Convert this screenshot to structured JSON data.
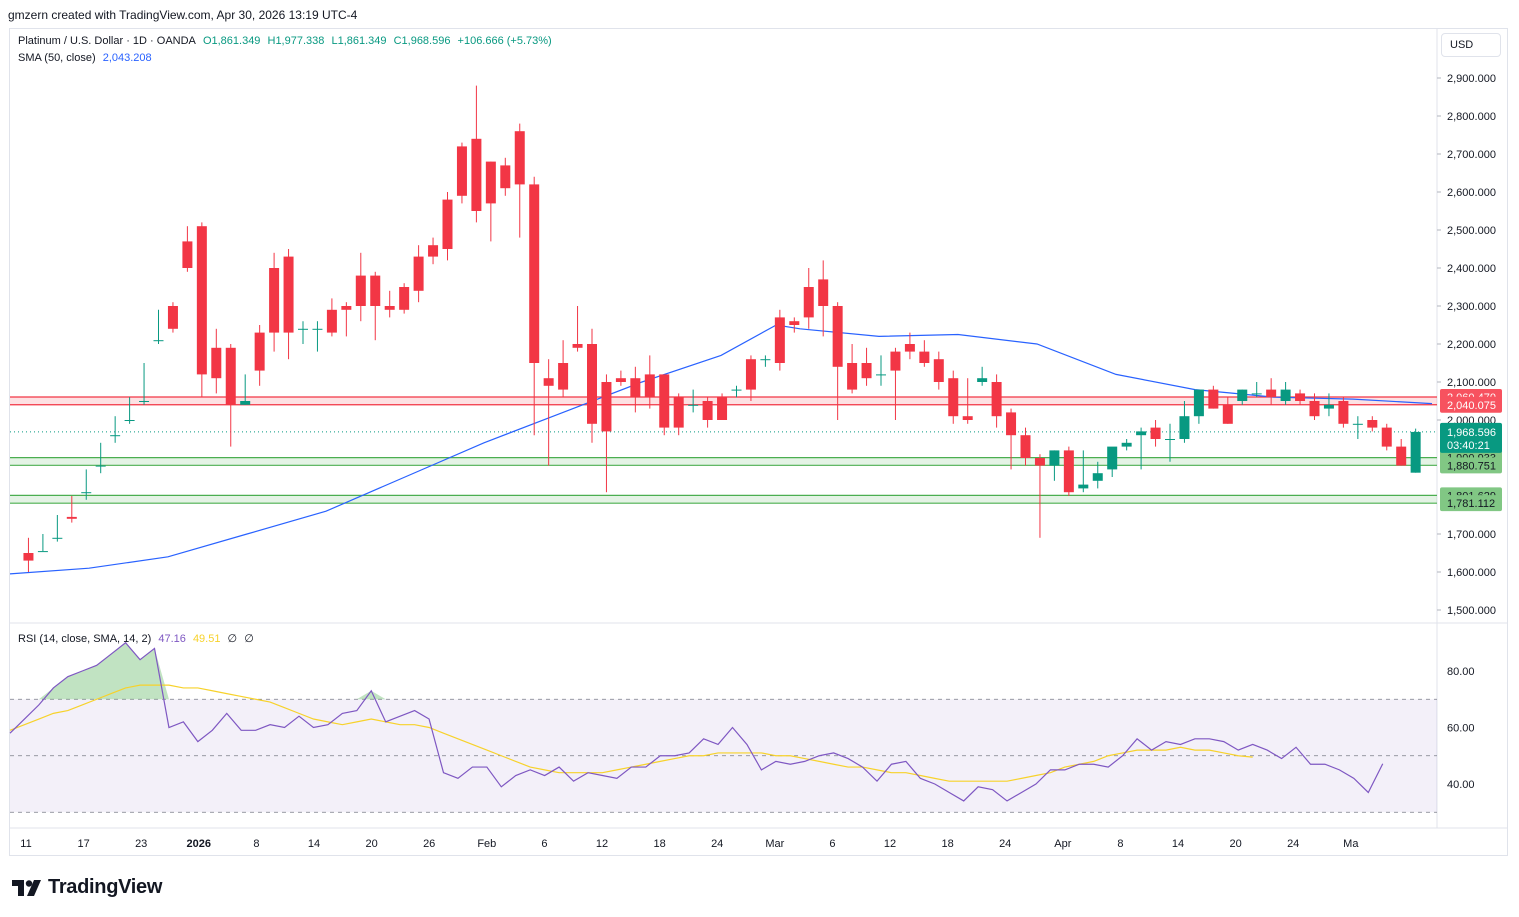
{
  "header": {
    "attribution": "gmzern created with TradingView.com, Apr 30, 2026 13:19 UTC-4"
  },
  "legend": {
    "symbol": "Platinum / U.S. Dollar · 1D · OANDA",
    "open": "O1,861.349",
    "high": "H1,977.338",
    "low": "L1,861.349",
    "close": "C1,968.596",
    "change": "+106.666 (+5.73%)",
    "sma_label": "SMA (50, close)",
    "sma_value": "2,043.208",
    "rsi_label": "RSI (14, close, SMA, 14, 2)",
    "rsi_value": "47.16",
    "rsi_ma_value": "49.51",
    "rsi_extra1": "∅",
    "rsi_extra2": "∅"
  },
  "currency": "USD",
  "footer": {
    "brand": "TradingView",
    "logo_icon": "tradingview-logo-icon"
  },
  "colors": {
    "up": "#089981",
    "down": "#f23645",
    "sma": "#2962ff",
    "rsi": "#7e57c2",
    "rsi_ma": "#f7d22b",
    "support": "#4caf50",
    "resistance": "#f23645"
  },
  "chart_data": {
    "type": "candlestick",
    "price_axis": {
      "ylim": [
        1450,
        2980
      ],
      "ticks": [
        "2,900.000",
        "2,800.000",
        "2,700.000",
        "2,600.000",
        "2,500.000",
        "2,400.000",
        "2,300.000",
        "2,200.000",
        "2,100.000",
        "2,000.000",
        "1,700.000",
        "1,600.000",
        "1,500.000"
      ]
    },
    "x_labels": [
      "11",
      "17",
      "23",
      "2026",
      "8",
      "14",
      "20",
      "26",
      "Feb",
      "6",
      "12",
      "18",
      "24",
      "Mar",
      "6",
      "12",
      "18",
      "24",
      "Apr",
      "8",
      "14",
      "20",
      "24",
      "Ma"
    ],
    "candles": [
      [
        1,
        [
          1650,
          1690,
          1630,
          1600
        ]
      ],
      [
        2,
        [
          1655,
          1700,
          1655,
          1655
        ]
      ],
      [
        3,
        [
          1690,
          1750,
          1690,
          1680
        ]
      ],
      [
        4,
        [
          1745,
          1800,
          1740,
          1730
        ]
      ],
      [
        5,
        [
          1810,
          1870,
          1810,
          1790
        ]
      ],
      [
        6,
        [
          1880,
          1940,
          1880,
          1860
        ]
      ],
      [
        7,
        [
          1960,
          2010,
          1960,
          1940
        ]
      ],
      [
        8,
        [
          2000,
          2060,
          2000,
          1990
        ]
      ],
      [
        9,
        [
          2050,
          2150,
          2050,
          2040
        ]
      ],
      [
        10,
        [
          2210,
          2290,
          2210,
          2200
        ]
      ],
      [
        11,
        [
          2300,
          2310,
          2240,
          2230
        ]
      ],
      [
        12,
        [
          2470,
          2510,
          2400,
          2390
        ]
      ],
      [
        13,
        [
          2510,
          2520,
          2120,
          2060
        ]
      ],
      [
        14,
        [
          2190,
          2240,
          2110,
          2070
        ]
      ],
      [
        15,
        [
          2190,
          2200,
          2040,
          1930
        ]
      ],
      [
        16,
        [
          2040,
          2120,
          2050,
          2040
        ]
      ],
      [
        17,
        [
          2230,
          2250,
          2130,
          2090
        ]
      ],
      [
        18,
        [
          2400,
          2440,
          2230,
          2180
        ]
      ],
      [
        19,
        [
          2430,
          2450,
          2230,
          2160
        ]
      ],
      [
        20,
        [
          2240,
          2260,
          2240,
          2200
        ]
      ],
      [
        21,
        [
          2240,
          2260,
          2240,
          2180
        ]
      ],
      [
        22,
        [
          2290,
          2320,
          2230,
          2220
        ]
      ],
      [
        23,
        [
          2300,
          2310,
          2290,
          2220
        ]
      ],
      [
        24,
        [
          2380,
          2440,
          2300,
          2260
        ]
      ],
      [
        25,
        [
          2380,
          2390,
          2300,
          2210
        ]
      ],
      [
        26,
        [
          2300,
          2340,
          2290,
          2270
        ]
      ],
      [
        27,
        [
          2350,
          2360,
          2290,
          2280
        ]
      ],
      [
        28,
        [
          2430,
          2460,
          2340,
          2310
        ]
      ],
      [
        29,
        [
          2460,
          2480,
          2430,
          2410
        ]
      ],
      [
        30,
        [
          2580,
          2600,
          2450,
          2420
        ]
      ],
      [
        31,
        [
          2720,
          2730,
          2590,
          2570
        ]
      ],
      [
        32,
        [
          2740,
          2880,
          2550,
          2520
        ]
      ],
      [
        33,
        [
          2680,
          2680,
          2570,
          2470
        ]
      ],
      [
        34,
        [
          2670,
          2690,
          2610,
          2590
        ]
      ],
      [
        35,
        [
          2760,
          2780,
          2620,
          2480
        ]
      ],
      [
        36,
        [
          2620,
          2640,
          2150,
          1960
        ]
      ],
      [
        37,
        [
          2110,
          2160,
          2090,
          1880
        ]
      ],
      [
        38,
        [
          2150,
          2210,
          2080,
          2060
        ]
      ],
      [
        39,
        [
          2200,
          2300,
          2190,
          2180
        ]
      ],
      [
        40,
        [
          2200,
          2240,
          1990,
          1940
        ]
      ],
      [
        41,
        [
          2100,
          2120,
          1970,
          1810
        ]
      ],
      [
        42,
        [
          2110,
          2130,
          2100,
          2090
        ]
      ],
      [
        43,
        [
          2110,
          2140,
          2060,
          2020
        ]
      ],
      [
        44,
        [
          2120,
          2170,
          2060,
          2030
        ]
      ],
      [
        45,
        [
          2120,
          2120,
          1980,
          1960
        ]
      ],
      [
        46,
        [
          2060,
          2070,
          1980,
          1960
        ]
      ],
      [
        47,
        [
          2040,
          2080,
          2040,
          2020
        ]
      ],
      [
        48,
        [
          2050,
          2060,
          2000,
          1980
        ]
      ],
      [
        49,
        [
          2060,
          2070,
          2000,
          2000
        ]
      ],
      [
        50,
        [
          2080,
          2090,
          2080,
          2060
        ]
      ],
      [
        51,
        [
          2160,
          2170,
          2080,
          2050
        ]
      ],
      [
        52,
        [
          2160,
          2170,
          2160,
          2140
        ]
      ],
      [
        53,
        [
          2270,
          2290,
          2150,
          2130
        ]
      ],
      [
        54,
        [
          2260,
          2270,
          2250,
          2230
        ]
      ],
      [
        55,
        [
          2350,
          2400,
          2270,
          2240
        ]
      ],
      [
        56,
        [
          2370,
          2420,
          2300,
          2220
        ]
      ],
      [
        57,
        [
          2300,
          2310,
          2140,
          2000
        ]
      ],
      [
        58,
        [
          2150,
          2200,
          2080,
          2070
        ]
      ],
      [
        59,
        [
          2150,
          2190,
          2110,
          2090
        ]
      ],
      [
        60,
        [
          2120,
          2170,
          2120,
          2090
        ]
      ],
      [
        61,
        [
          2180,
          2190,
          2130,
          2000
        ]
      ],
      [
        62,
        [
          2200,
          2230,
          2180,
          2160
        ]
      ],
      [
        63,
        [
          2180,
          2210,
          2150,
          2140
        ]
      ],
      [
        64,
        [
          2160,
          2180,
          2100,
          2080
        ]
      ],
      [
        65,
        [
          2110,
          2130,
          2010,
          1990
        ]
      ],
      [
        66,
        [
          2010,
          2110,
          2000,
          1990
        ]
      ],
      [
        67,
        [
          2100,
          2140,
          2110,
          2090
        ]
      ],
      [
        68,
        [
          2100,
          2120,
          2010,
          1980
        ]
      ],
      [
        69,
        [
          2020,
          2030,
          1960,
          1870
        ]
      ],
      [
        70,
        [
          1960,
          1980,
          1900,
          1880
        ]
      ],
      [
        71,
        [
          1900,
          1910,
          1880,
          1690
        ]
      ],
      [
        72,
        [
          1880,
          1920,
          1920,
          1840
        ]
      ],
      [
        73,
        [
          1920,
          1930,
          1810,
          1800
        ]
      ],
      [
        74,
        [
          1820,
          1920,
          1830,
          1810
        ]
      ],
      [
        75,
        [
          1840,
          1890,
          1860,
          1820
        ]
      ],
      [
        76,
        [
          1870,
          1900,
          1930,
          1850
        ]
      ],
      [
        77,
        [
          1930,
          1950,
          1940,
          1920
        ]
      ],
      [
        78,
        [
          1960,
          1980,
          1970,
          1870
        ]
      ],
      [
        79,
        [
          1980,
          2000,
          1950,
          1930
        ]
      ],
      [
        80,
        [
          1950,
          1990,
          1950,
          1890
        ]
      ],
      [
        81,
        [
          1950,
          2050,
          2010,
          1940
        ]
      ],
      [
        82,
        [
          2010,
          2070,
          2080,
          1990
        ]
      ],
      [
        83,
        [
          2080,
          2090,
          2030,
          2030
        ]
      ],
      [
        84,
        [
          2040,
          2060,
          1990,
          1990
        ]
      ],
      [
        85,
        [
          2050,
          2080,
          2080,
          2040
        ]
      ],
      [
        86,
        [
          2070,
          2100,
          2070,
          2060
        ]
      ],
      [
        87,
        [
          2080,
          2110,
          2060,
          2040
        ]
      ],
      [
        88,
        [
          2050,
          2100,
          2080,
          2040
        ]
      ],
      [
        89,
        [
          2070,
          2080,
          2050,
          2040
        ]
      ],
      [
        90,
        [
          2050,
          2070,
          2010,
          2000
        ]
      ],
      [
        91,
        [
          2030,
          2070,
          2040,
          2010
        ]
      ],
      [
        92,
        [
          2050,
          2060,
          1990,
          1980
        ]
      ],
      [
        93,
        [
          1990,
          2010,
          1990,
          1950
        ]
      ],
      [
        94,
        [
          2000,
          2010,
          1980,
          1970
        ]
      ],
      [
        95,
        [
          1980,
          1990,
          1930,
          1920
        ]
      ],
      [
        96,
        [
          1930,
          1950,
          1880,
          1880
        ]
      ],
      [
        97,
        [
          1861.349,
          1977.338,
          1968.596,
          1861.349
        ]
      ]
    ],
    "sma50": [
      [
        0,
        1595
      ],
      [
        10,
        1610
      ],
      [
        20,
        1640
      ],
      [
        30,
        1700
      ],
      [
        40,
        1760
      ],
      [
        50,
        1850
      ],
      [
        60,
        1940
      ],
      [
        70,
        2020
      ],
      [
        80,
        2100
      ],
      [
        90,
        2170
      ],
      [
        97,
        2250
      ],
      [
        100,
        2240
      ],
      [
        110,
        2220
      ],
      [
        120,
        2225
      ],
      [
        130,
        2200
      ],
      [
        140,
        2120
      ],
      [
        150,
        2080
      ],
      [
        155,
        2070
      ],
      [
        160,
        2060
      ],
      [
        170,
        2055
      ],
      [
        180,
        2043
      ]
    ],
    "price_lines": [
      {
        "label": "2,060.470",
        "value": 2060.47,
        "kind": "resistance"
      },
      {
        "label": "2,040.075",
        "value": 2040.075,
        "kind": "resistance"
      },
      {
        "label": "1,900.933",
        "value": 1900.933,
        "kind": "support"
      },
      {
        "label": "1,880.751",
        "value": 1880.751,
        "kind": "support"
      },
      {
        "label": "1,801.629",
        "value": 1801.629,
        "kind": "support"
      },
      {
        "label": "1,781.112",
        "value": 1781.112,
        "kind": "support"
      }
    ],
    "last_price": {
      "label": "1,968.596",
      "countdown": "03:40:21",
      "value": 1968.596
    },
    "rsi_axis": {
      "ylim": [
        25,
        90
      ],
      "ticks": [
        "80.00",
        "60.00",
        "40.00"
      ],
      "bands": [
        30,
        50,
        70
      ]
    },
    "rsi": [
      58,
      63,
      68,
      74,
      78,
      80,
      82,
      86,
      90,
      84,
      88,
      60,
      62,
      55,
      59,
      65,
      59,
      59,
      61,
      60,
      64,
      60,
      61,
      65,
      66,
      73,
      62,
      64,
      66,
      63,
      44,
      42,
      46,
      46,
      39,
      43,
      45,
      43,
      46,
      41,
      44,
      43,
      42,
      46,
      46,
      50,
      50,
      51,
      56,
      54,
      60,
      54,
      45,
      48,
      47,
      48,
      50,
      51,
      49,
      46,
      41,
      47,
      48,
      42,
      40,
      37,
      34,
      39,
      38,
      34,
      37,
      40,
      45,
      45,
      47,
      47,
      46,
      50,
      56,
      52,
      55,
      54,
      56,
      56,
      55,
      52,
      54,
      52,
      49,
      53,
      47,
      47,
      45,
      42,
      37,
      47.16
    ],
    "rsi_ma": [
      59,
      61,
      63,
      65,
      66,
      68,
      70,
      72,
      74,
      75,
      75,
      75,
      74,
      74,
      73,
      72,
      71,
      70,
      69,
      67,
      65,
      63,
      62,
      61,
      62,
      63,
      62,
      61,
      61,
      60,
      58,
      56,
      54,
      52,
      50,
      48,
      46,
      45,
      44,
      44,
      44,
      44,
      45,
      46,
      47,
      48,
      49,
      50,
      50,
      51,
      51,
      51,
      51,
      50,
      50,
      49,
      48,
      47,
      46,
      46,
      45,
      44,
      44,
      43,
      42,
      41,
      41,
      41,
      41,
      41,
      42,
      43,
      44,
      46,
      47,
      48,
      50,
      51,
      52,
      52,
      52,
      53,
      52,
      52,
      51,
      50,
      49.51
    ]
  }
}
